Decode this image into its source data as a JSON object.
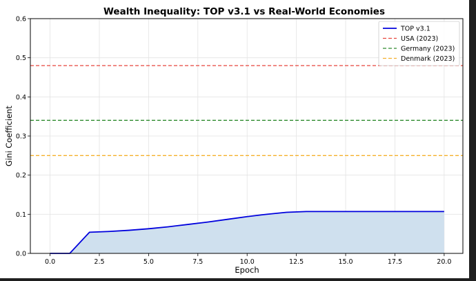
{
  "chart_data": {
    "type": "line",
    "title": "Wealth Inequality: TOP v3.1 vs Real-World Economies",
    "xlabel": "Epoch",
    "ylabel": "Gini Coefficient",
    "xlim": [
      -1,
      20.95
    ],
    "ylim": [
      0,
      0.6
    ],
    "xticks": [
      0,
      2.5,
      5,
      7.5,
      10,
      12.5,
      15,
      17.5,
      20
    ],
    "xtick_labels": [
      "0.0",
      "2.5",
      "5.0",
      "7.5",
      "10.0",
      "12.5",
      "15.0",
      "17.5",
      "20.0"
    ],
    "yticks": [
      0,
      0.1,
      0.2,
      0.3,
      0.4,
      0.5,
      0.6
    ],
    "ytick_labels": [
      "0.0",
      "0.1",
      "0.2",
      "0.3",
      "0.4",
      "0.5",
      "0.6"
    ],
    "grid": true,
    "legend_position": "top-right",
    "series": [
      {
        "name": "TOP v3.1",
        "color": "#0000dd",
        "style": "solid",
        "fill_below": true,
        "fill_color": "#cfe0ee",
        "x": [
          0,
          1,
          2,
          3,
          4,
          5,
          6,
          7,
          8,
          9,
          10,
          11,
          12,
          13,
          14,
          15,
          16,
          17,
          18,
          19,
          20
        ],
        "y": [
          0,
          0,
          0.054,
          0.056,
          0.059,
          0.063,
          0.068,
          0.074,
          0.08,
          0.087,
          0.094,
          0.1,
          0.105,
          0.107,
          0.107,
          0.107,
          0.107,
          0.107,
          0.107,
          0.107,
          0.107
        ]
      },
      {
        "name": "USA (2023)",
        "color": "#e8453c",
        "style": "dashed",
        "hline": 0.48
      },
      {
        "name": "Germany (2023)",
        "color": "#2e8b2e",
        "style": "dashed",
        "hline": 0.34
      },
      {
        "name": "Denmark (2023)",
        "color": "#f5b02a",
        "style": "dashed",
        "hline": 0.25
      }
    ]
  }
}
